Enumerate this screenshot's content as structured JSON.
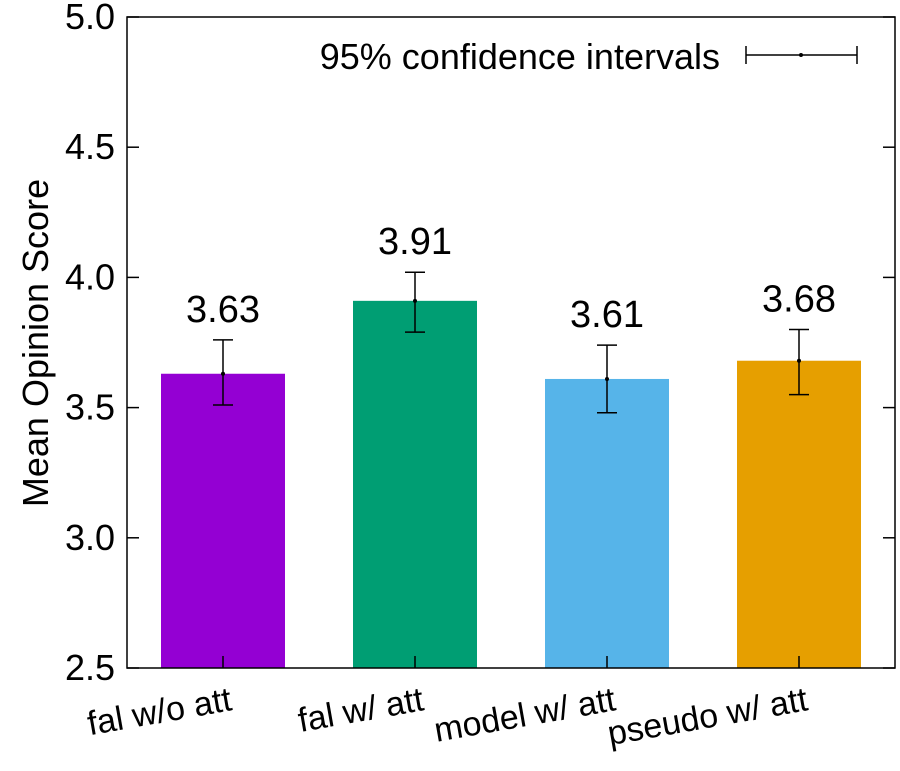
{
  "chart_data": {
    "type": "bar",
    "title": "",
    "xlabel": "",
    "ylabel": "Mean Opinion Score",
    "ylim": [
      2.5,
      5.0
    ],
    "yticks": [
      "2.5",
      "3.0",
      "3.5",
      "4.0",
      "4.5",
      "5.0"
    ],
    "categories": [
      "fal w/o att",
      "fal w/ att",
      "model w/ att",
      "pseudo w/ att"
    ],
    "values": [
      3.63,
      3.91,
      3.61,
      3.68
    ],
    "value_labels": [
      "3.63",
      "3.91",
      "3.61",
      "3.68"
    ],
    "ci_low": [
      3.51,
      3.79,
      3.48,
      3.55
    ],
    "ci_high": [
      3.76,
      4.02,
      3.74,
      3.8
    ],
    "colors": [
      "#9400d3",
      "#009e73",
      "#56b4e9",
      "#e69f00"
    ],
    "legend": {
      "label": "95% confidence intervals",
      "position": "top-right"
    },
    "grid": false
  }
}
